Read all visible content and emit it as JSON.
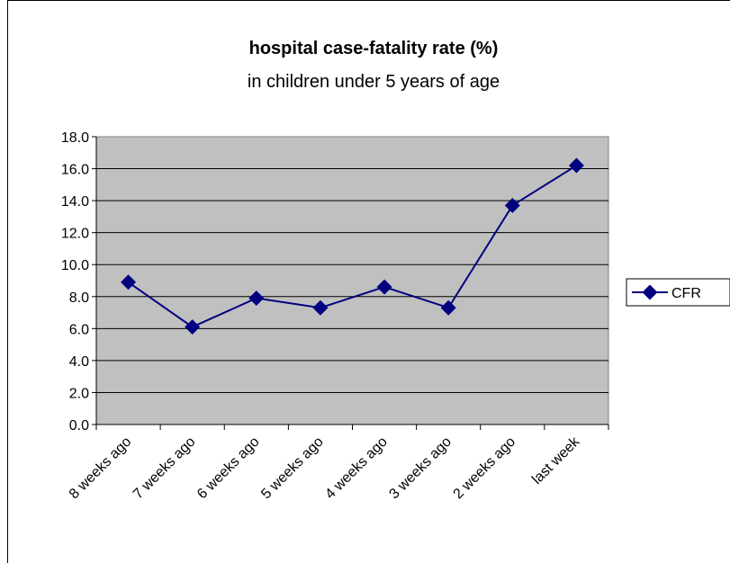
{
  "chart_data": {
    "type": "line",
    "title": "hospital case-fatality rate (%)",
    "subtitle": "in children under 5 years of age",
    "categories": [
      "8 weeks ago",
      "7 weeks ago",
      "6 weeks ago",
      "5 weeks ago",
      "4 weeks ago",
      "3 weeks ago",
      "2 weeks ago",
      "last week"
    ],
    "series": [
      {
        "name": "CFR",
        "values": [
          8.9,
          6.1,
          7.9,
          7.3,
          8.6,
          7.3,
          13.7,
          16.2
        ]
      }
    ],
    "ylim": [
      0,
      18
    ],
    "yticks": [
      "0.0",
      "2.0",
      "4.0",
      "6.0",
      "8.0",
      "10.0",
      "12.0",
      "14.0",
      "16.0",
      "18.0"
    ],
    "grid": true,
    "legend_position": "right",
    "colors": {
      "series": "#000080",
      "plot_background": "#c0c0c0",
      "gridline": "#000000"
    }
  }
}
